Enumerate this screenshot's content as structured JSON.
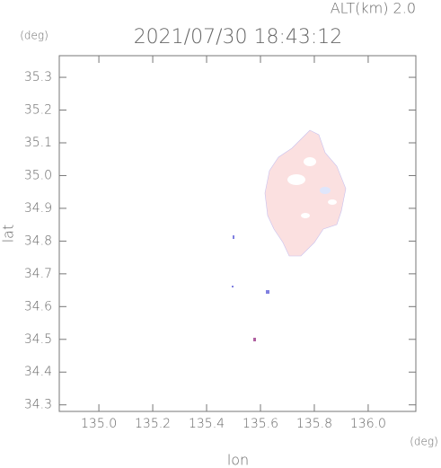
{
  "chart_data": {
    "type": "map",
    "title": "2021/07/30 18:43:12",
    "subtitle": "ALT(km) 2.0",
    "x_label": "lon",
    "y_label": "lat",
    "x_unit": "(deg)",
    "y_unit": "(deg)",
    "xlim": [
      134.853,
      136.177
    ],
    "ylim": [
      34.28,
      35.366
    ],
    "xticks": [
      {
        "value": 135,
        "label": "135.0"
      },
      135.2,
      135.4,
      135.6,
      135.8,
      {
        "value": 136,
        "label": "136.0"
      }
    ],
    "yticks": [
      34.3,
      34.4,
      34.5,
      34.6,
      34.7,
      34.8,
      34.9,
      {
        "value": 35,
        "label": "35.0"
      },
      35.1,
      35.2,
      35.3
    ]
  }
}
